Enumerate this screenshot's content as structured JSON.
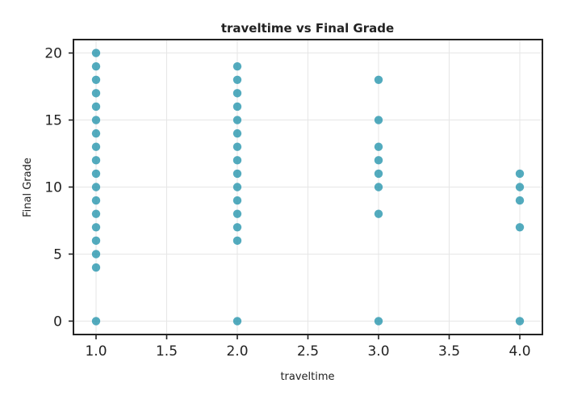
{
  "chart_data": {
    "type": "scatter",
    "title": "traveltime vs Final Grade",
    "xlabel": "traveltime",
    "ylabel": "Final Grade",
    "xlim": [
      0.84,
      4.16
    ],
    "ylim": [
      -1,
      21
    ],
    "xticks": [
      1.0,
      1.5,
      2.0,
      2.5,
      3.0,
      3.5,
      4.0
    ],
    "xtick_labels": [
      "1.0",
      "1.5",
      "2.0",
      "2.5",
      "3.0",
      "3.5",
      "4.0"
    ],
    "yticks": [
      0,
      5,
      10,
      15,
      20
    ],
    "ytick_labels": [
      "0",
      "5",
      "10",
      "15",
      "20"
    ],
    "grid": true,
    "marker_color": "#1a8fa8",
    "points": [
      {
        "x": 1,
        "y": 0
      },
      {
        "x": 1,
        "y": 4
      },
      {
        "x": 1,
        "y": 5
      },
      {
        "x": 1,
        "y": 6
      },
      {
        "x": 1,
        "y": 7
      },
      {
        "x": 1,
        "y": 8
      },
      {
        "x": 1,
        "y": 9
      },
      {
        "x": 1,
        "y": 10
      },
      {
        "x": 1,
        "y": 11
      },
      {
        "x": 1,
        "y": 12
      },
      {
        "x": 1,
        "y": 13
      },
      {
        "x": 1,
        "y": 14
      },
      {
        "x": 1,
        "y": 15
      },
      {
        "x": 1,
        "y": 16
      },
      {
        "x": 1,
        "y": 17
      },
      {
        "x": 1,
        "y": 18
      },
      {
        "x": 1,
        "y": 19
      },
      {
        "x": 1,
        "y": 20
      },
      {
        "x": 2,
        "y": 0
      },
      {
        "x": 2,
        "y": 6
      },
      {
        "x": 2,
        "y": 7
      },
      {
        "x": 2,
        "y": 8
      },
      {
        "x": 2,
        "y": 9
      },
      {
        "x": 2,
        "y": 10
      },
      {
        "x": 2,
        "y": 11
      },
      {
        "x": 2,
        "y": 12
      },
      {
        "x": 2,
        "y": 13
      },
      {
        "x": 2,
        "y": 14
      },
      {
        "x": 2,
        "y": 15
      },
      {
        "x": 2,
        "y": 16
      },
      {
        "x": 2,
        "y": 17
      },
      {
        "x": 2,
        "y": 18
      },
      {
        "x": 2,
        "y": 19
      },
      {
        "x": 3,
        "y": 0
      },
      {
        "x": 3,
        "y": 8
      },
      {
        "x": 3,
        "y": 10
      },
      {
        "x": 3,
        "y": 11
      },
      {
        "x": 3,
        "y": 12
      },
      {
        "x": 3,
        "y": 13
      },
      {
        "x": 3,
        "y": 15
      },
      {
        "x": 3,
        "y": 18
      },
      {
        "x": 4,
        "y": 0
      },
      {
        "x": 4,
        "y": 7
      },
      {
        "x": 4,
        "y": 9
      },
      {
        "x": 4,
        "y": 10
      },
      {
        "x": 4,
        "y": 11
      }
    ]
  }
}
